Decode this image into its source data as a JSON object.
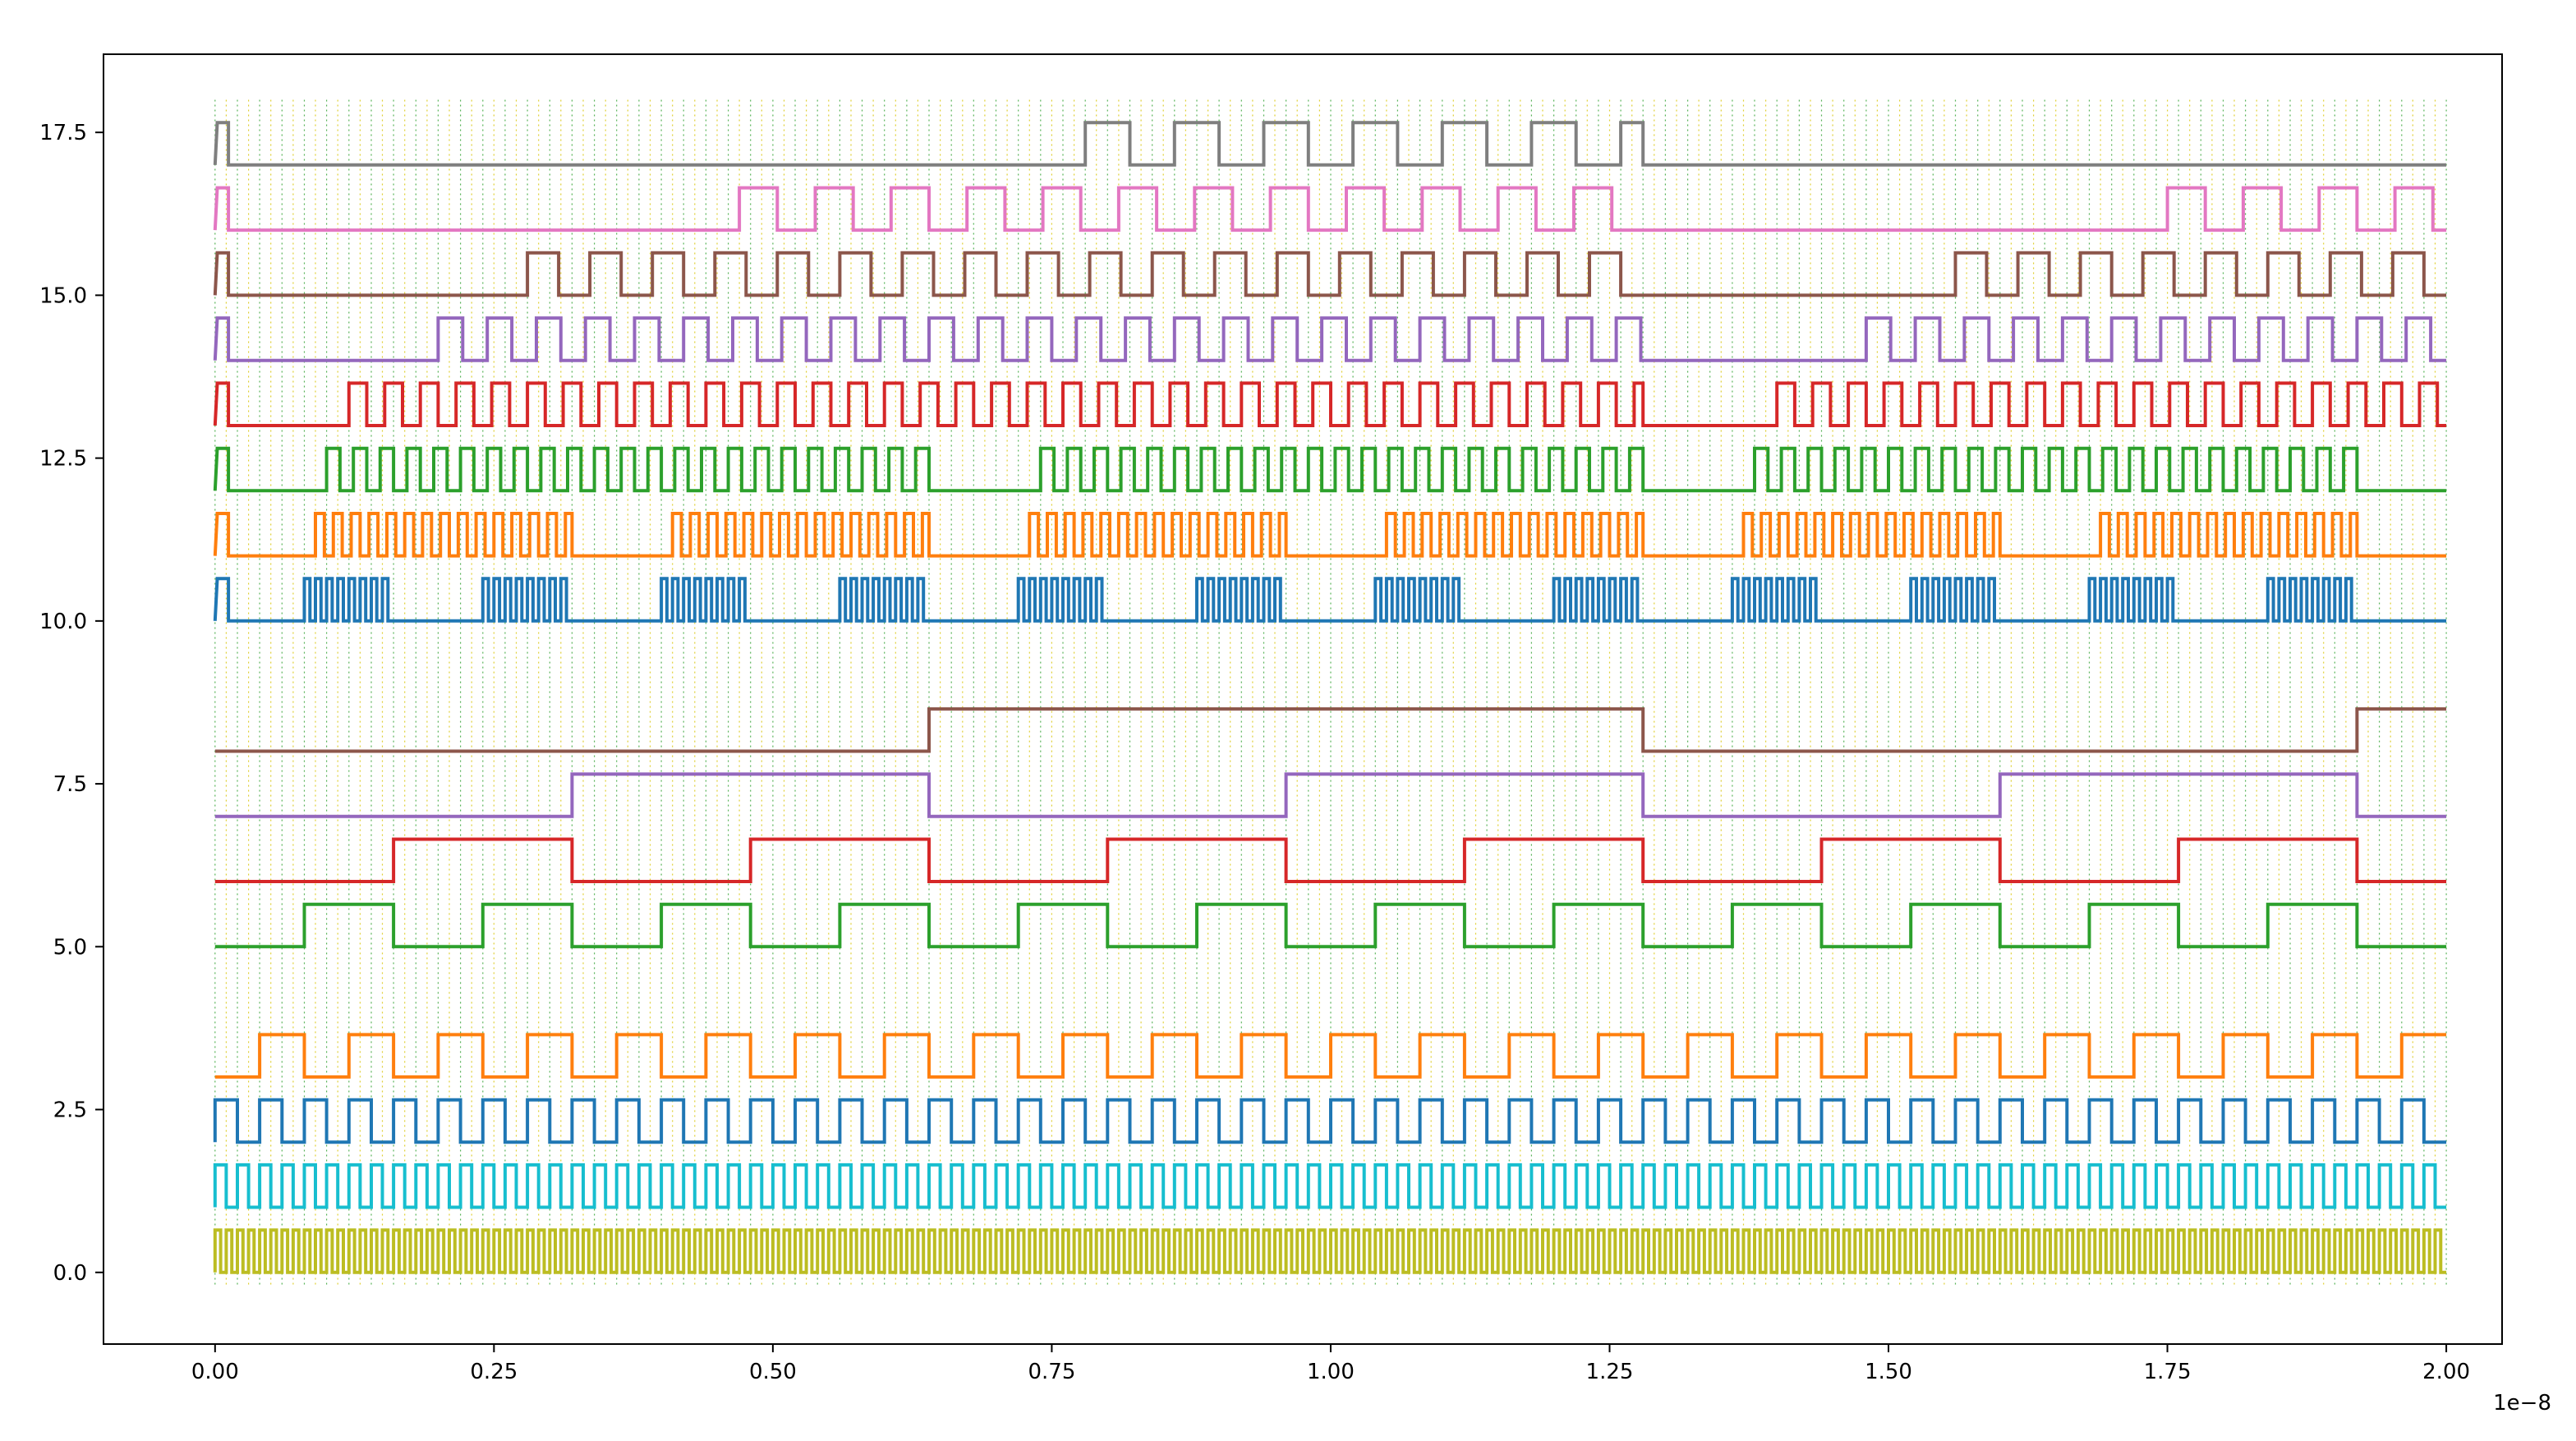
{
  "chart_data": {
    "type": "line",
    "title": "",
    "xlabel": "",
    "ylabel": "",
    "xlim": [
      -0.1,
      2.05
    ],
    "ylim": [
      -1.1,
      18.7
    ],
    "x_offset_label": "1e−8",
    "xticks": [
      0.0,
      0.25,
      0.5,
      0.75,
      1.0,
      1.25,
      1.5,
      1.75,
      2.0
    ],
    "xtick_labels": [
      "0.00",
      "0.25",
      "0.50",
      "0.75",
      "1.00",
      "1.25",
      "1.50",
      "1.75",
      "2.00"
    ],
    "yticks": [
      0.0,
      2.5,
      5.0,
      7.5,
      10.0,
      12.5,
      15.0,
      17.5
    ],
    "ytick_labels": [
      "0.0",
      "2.5",
      "5.0",
      "7.5",
      "10.0",
      "12.5",
      "15.0",
      "17.5"
    ],
    "grid": true,
    "grid_style": "dotted vertical lines every 0.01, baseline to 18.0",
    "grid_colors": [
      "#2ca02c",
      "#d8c400"
    ],
    "grid_range": [
      0.0,
      2.0
    ],
    "signal_amplitude": 0.65,
    "series": [
      {
        "color": "#bcbd22",
        "baseline": 0.0,
        "type": "clock",
        "period": 0.01,
        "phase": 0.0
      },
      {
        "color": "#17becf",
        "baseline": 1.0,
        "type": "clock",
        "period": 0.02,
        "phase": 0.0
      },
      {
        "color": "#1f77b4",
        "baseline": 2.0,
        "type": "clock",
        "period": 0.04,
        "phase": 0.0
      },
      {
        "color": "#ff7f0e",
        "baseline": 3.0,
        "type": "clock",
        "period": 0.08,
        "phase": 0.04
      },
      {
        "color": "#2ca02c",
        "baseline": 5.0,
        "type": "clock",
        "period": 0.16,
        "phase": 0.08
      },
      {
        "color": "#d62728",
        "baseline": 6.0,
        "type": "clock",
        "period": 0.32,
        "phase": 0.16
      },
      {
        "color": "#9467bd",
        "baseline": 7.0,
        "type": "clock",
        "period": 0.64,
        "phase": 0.32
      },
      {
        "color": "#8c564b",
        "baseline": 8.0,
        "type": "clock",
        "period": 1.28,
        "phase": 0.64
      },
      {
        "color": "#1f77b4",
        "baseline": 10.0,
        "type": "burst",
        "burst_starts": [
          0.08,
          0.24,
          0.4,
          0.56,
          0.72,
          0.88,
          1.04,
          1.2,
          1.36,
          1.52,
          1.68,
          1.84
        ],
        "burst_length": 0.08,
        "burst_toggle": 0.005
      },
      {
        "color": "#ff7f0e",
        "baseline": 11.0,
        "type": "burst",
        "burst_starts": [
          0.09,
          0.41,
          0.73,
          1.05,
          1.37,
          1.69
        ],
        "burst_length": 0.23,
        "burst_toggle": 0.008
      },
      {
        "color": "#2ca02c",
        "baseline": 12.0,
        "type": "burst",
        "burst_starts": [
          0.1,
          0.74,
          1.38
        ],
        "burst_length": 0.55,
        "burst_toggle": 0.012
      },
      {
        "color": "#d62728",
        "baseline": 13.0,
        "type": "burst",
        "burst_starts": [
          0.12,
          1.4
        ],
        "burst_length": 1.16,
        "burst_toggle": 0.016
      },
      {
        "color": "#9467bd",
        "baseline": 14.0,
        "type": "burst",
        "burst_starts": [
          0.2,
          1.48
        ],
        "burst_length": 1.08,
        "burst_toggle": 0.022
      },
      {
        "color": "#8c564b",
        "baseline": 15.0,
        "type": "burst",
        "burst_starts": [
          0.28,
          1.56
        ],
        "burst_length": 1.0,
        "burst_toggle": 0.028
      },
      {
        "color": "#e377c2",
        "baseline": 16.0,
        "type": "burst",
        "burst_starts": [
          0.47,
          1.75
        ],
        "burst_length": 0.81,
        "burst_toggle": 0.034
      },
      {
        "color": "#7f7f7f",
        "baseline": 17.0,
        "type": "burst",
        "burst_starts": [
          0.78
        ],
        "burst_length": 0.5,
        "burst_toggle": 0.04
      }
    ]
  }
}
